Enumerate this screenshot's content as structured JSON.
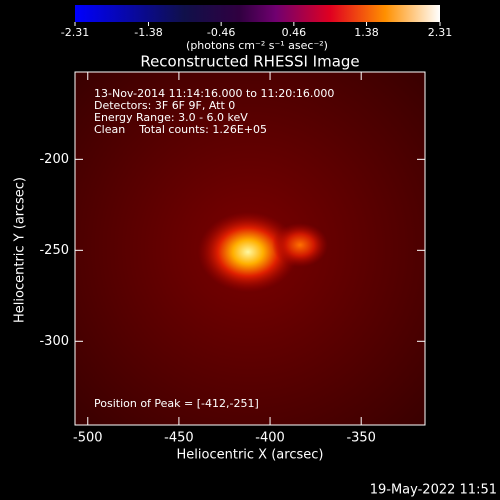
{
  "chart_data": {
    "type": "image",
    "title": "Reconstructed RHESSI Image",
    "colorbar": {
      "lim": [
        -2.31,
        2.31
      ],
      "ticks": [
        -2.31,
        -1.38,
        -0.46,
        0.46,
        1.38,
        2.31
      ],
      "label": "(photons cm⁻² s⁻¹ asec⁻²)"
    },
    "info": [
      "13-Nov-2014 11:14:16.000 to 11:20:16.000",
      "Detectors: 3F 6F 9F, Att 0",
      "Energy Range: 3.0 - 6.0 keV",
      "Clean    Total counts: 1.26E+05"
    ],
    "peak_label": "Position of Peak = [-412,-251]",
    "xlabel": "Heliocentric X (arcsec)",
    "ylabel": "Heliocentric Y (arcsec)",
    "xlim": [
      -507,
      -315
    ],
    "ylim": [
      -346,
      -152
    ],
    "xticks": [
      -500,
      -450,
      -400,
      -350
    ],
    "yticks": [
      -200,
      -250,
      -300
    ],
    "footer": "19-May-2022 11:51"
  }
}
